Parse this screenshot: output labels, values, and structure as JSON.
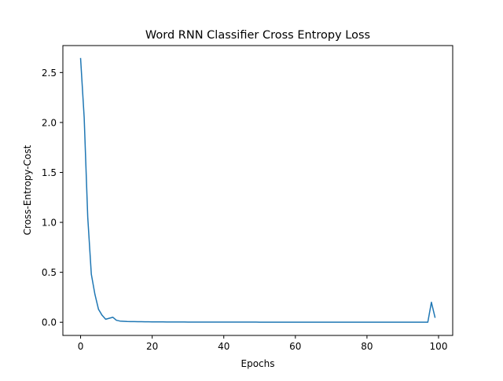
{
  "chart_data": {
    "type": "line",
    "title": "Word RNN Classifier Cross Entropy Loss",
    "xlabel": "Epochs",
    "ylabel": "Cross-Entropy-Cost",
    "xlim": [
      -4.95,
      103.95
    ],
    "ylim": [
      -0.132,
      2.77
    ],
    "xticks": [
      0,
      20,
      40,
      60,
      80,
      100
    ],
    "yticks": [
      0.0,
      0.5,
      1.0,
      1.5,
      2.0,
      2.5
    ],
    "xtick_labels": [
      "0",
      "20",
      "40",
      "60",
      "80",
      "100"
    ],
    "ytick_labels": [
      "0.0",
      "0.5",
      "1.0",
      "1.5",
      "2.0",
      "2.5"
    ],
    "grid": false,
    "series": [
      {
        "color": "#1f77b4",
        "x": [
          0,
          1,
          2,
          3,
          4,
          5,
          6,
          7,
          8,
          9,
          10,
          11,
          12,
          13,
          14,
          15,
          16,
          17,
          18,
          19,
          20,
          21,
          22,
          23,
          24,
          25,
          26,
          27,
          28,
          29,
          30,
          31,
          32,
          33,
          34,
          35,
          36,
          37,
          38,
          39,
          40,
          41,
          42,
          43,
          44,
          45,
          46,
          47,
          48,
          49,
          50,
          51,
          52,
          53,
          54,
          55,
          56,
          57,
          58,
          59,
          60,
          61,
          62,
          63,
          64,
          65,
          66,
          67,
          68,
          69,
          70,
          71,
          72,
          73,
          74,
          75,
          76,
          77,
          78,
          79,
          80,
          81,
          82,
          83,
          84,
          85,
          86,
          87,
          88,
          89,
          90,
          91,
          92,
          93,
          94,
          95,
          96,
          97,
          98,
          99
        ],
        "y": [
          2.64,
          2.05,
          1.05,
          0.48,
          0.28,
          0.13,
          0.07,
          0.03,
          0.04,
          0.05,
          0.02,
          0.012,
          0.01,
          0.008,
          0.007,
          0.007,
          0.006,
          0.006,
          0.005,
          0.005,
          0.004,
          0.004,
          0.004,
          0.004,
          0.003,
          0.003,
          0.003,
          0.003,
          0.003,
          0.003,
          0.002,
          0.002,
          0.002,
          0.002,
          0.002,
          0.002,
          0.002,
          0.002,
          0.002,
          0.002,
          0.002,
          0.002,
          0.002,
          0.002,
          0.002,
          0.002,
          0.002,
          0.002,
          0.002,
          0.002,
          0.001,
          0.001,
          0.001,
          0.001,
          0.001,
          0.001,
          0.001,
          0.001,
          0.001,
          0.001,
          0.001,
          0.001,
          0.001,
          0.001,
          0.001,
          0.001,
          0.001,
          0.001,
          0.001,
          0.001,
          0.001,
          0.001,
          0.001,
          0.001,
          0.001,
          0.001,
          0.001,
          0.001,
          0.001,
          0.001,
          0.001,
          0.001,
          0.001,
          0.001,
          0.001,
          0.001,
          0.001,
          0.001,
          0.001,
          0.001,
          0.001,
          0.001,
          0.001,
          0.001,
          0.001,
          0.001,
          0.001,
          0.001,
          0.2,
          0.05
        ]
      }
    ]
  }
}
